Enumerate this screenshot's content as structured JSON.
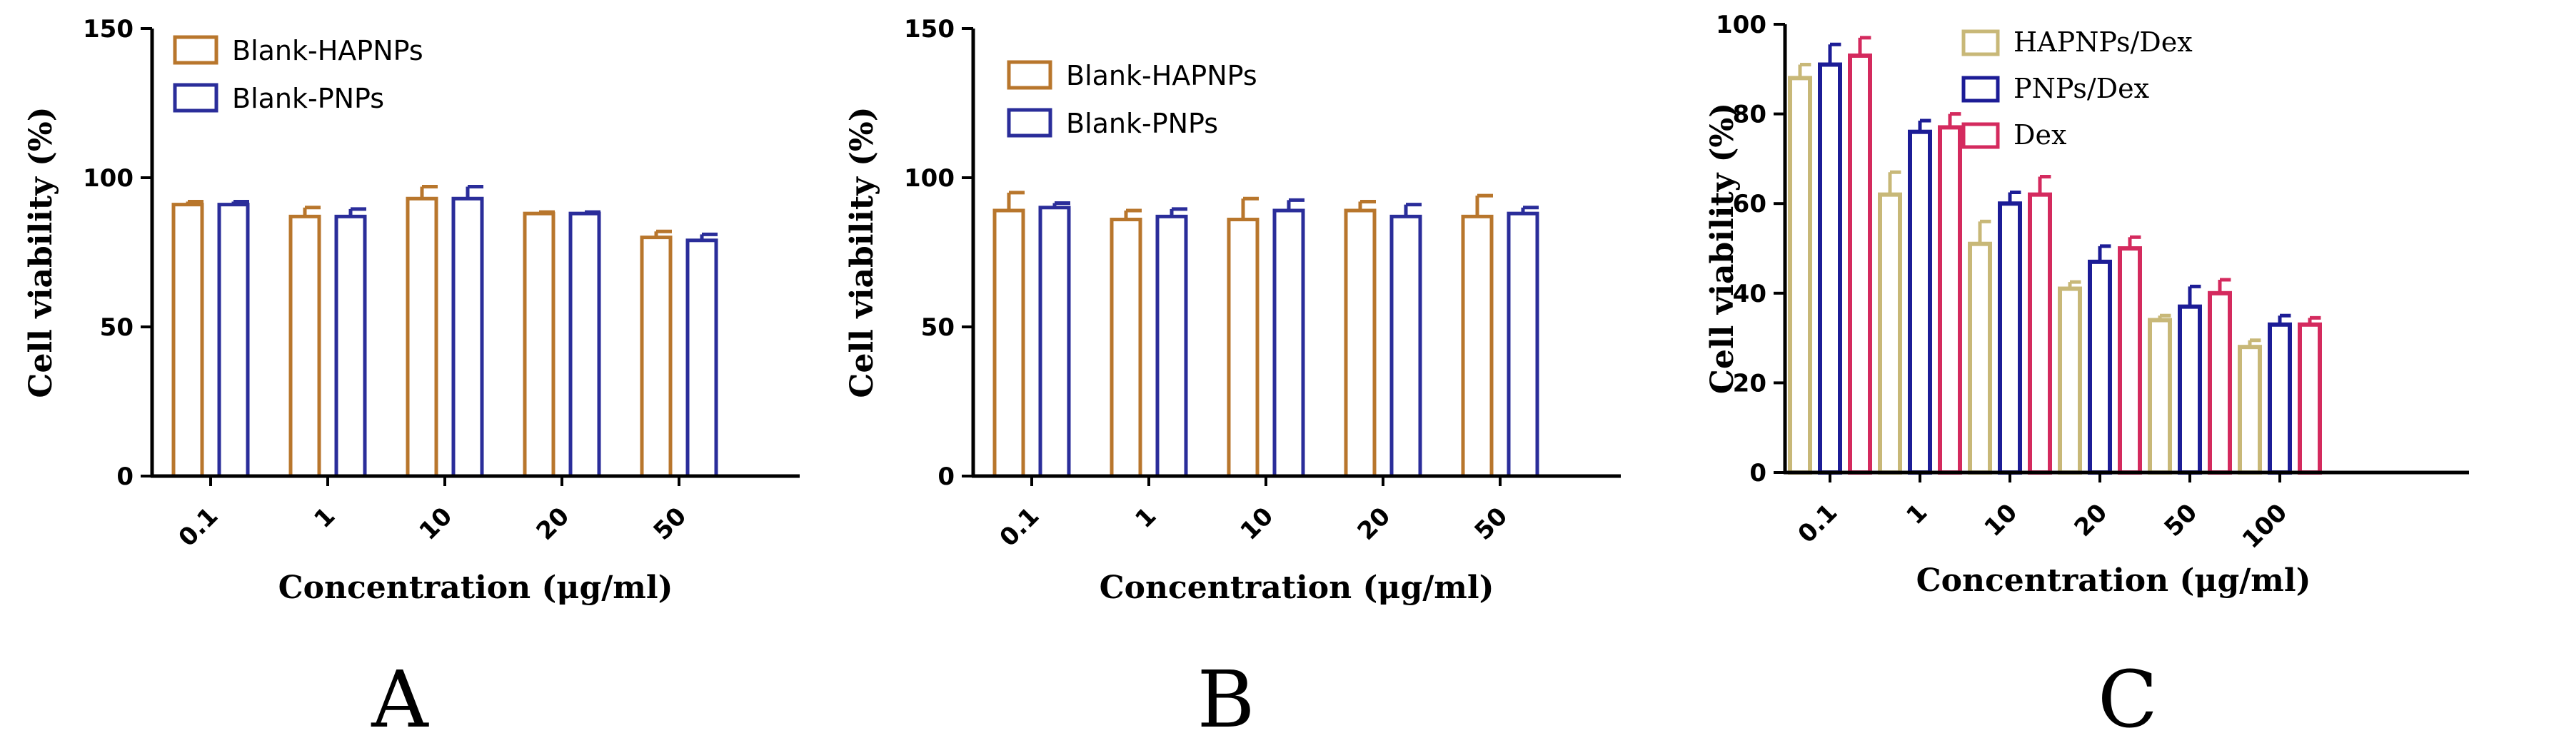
{
  "chart_data": [
    {
      "type": "bar",
      "panel_label": "A",
      "categories": [
        "0.1",
        "1",
        "10",
        "20",
        "50"
      ],
      "series": [
        {
          "name": "Blank-HAPNPs",
          "color": "#b8762c",
          "values": [
            91,
            87,
            93,
            88,
            80
          ],
          "errors": [
            1,
            3,
            4,
            0.5,
            2
          ]
        },
        {
          "name": "Blank-PNPs",
          "color": "#2a2d9a",
          "values": [
            91,
            87,
            93,
            88,
            79
          ],
          "errors": [
            1,
            2.5,
            4,
            0.5,
            2
          ]
        }
      ],
      "xlabel": "Concentration (μg/ml)",
      "ylabel": "Cell viability (%)",
      "ylim": [
        0,
        150
      ],
      "yticks": [
        "0",
        "50",
        "100",
        "150"
      ],
      "legend": "top-left"
    },
    {
      "type": "bar",
      "panel_label": "B",
      "categories": [
        "0.1",
        "1",
        "10",
        "20",
        "50"
      ],
      "series": [
        {
          "name": "Blank-HAPNPs",
          "color": "#b8762c",
          "values": [
            89,
            86,
            86,
            89,
            87
          ],
          "errors": [
            6,
            3,
            7,
            3,
            7
          ]
        },
        {
          "name": "Blank-PNPs",
          "color": "#2a2d9a",
          "values": [
            90,
            87,
            89,
            87,
            88
          ],
          "errors": [
            1.5,
            2.5,
            3.5,
            4,
            2
          ]
        }
      ],
      "xlabel": "Concentration (μg/ml)",
      "ylabel": "Cell viability (%)",
      "ylim": [
        0,
        150
      ],
      "yticks": [
        "0",
        "50",
        "100",
        "150"
      ],
      "legend": "top-left"
    },
    {
      "type": "bar",
      "panel_label": "C",
      "categories": [
        "0.1",
        "1",
        "10",
        "20",
        "50",
        "100"
      ],
      "series": [
        {
          "name": "HAPNPs/Dex",
          "color": "#c8b878",
          "values": [
            88,
            62,
            51,
            41,
            34,
            28
          ],
          "errors": [
            3,
            5,
            5,
            1.5,
            1,
            1.5
          ]
        },
        {
          "name": "PNPs/Dex",
          "color": "#1c1c96",
          "values": [
            91,
            76,
            60,
            47,
            37,
            33
          ],
          "errors": [
            4.5,
            2.5,
            2.5,
            3.5,
            4.5,
            2
          ]
        },
        {
          "name": "Dex",
          "color": "#d42a5e",
          "values": [
            93,
            77,
            62,
            50,
            40,
            33
          ],
          "errors": [
            4,
            3,
            4,
            2.5,
            3,
            1.5
          ]
        }
      ],
      "xlabel": "Concentration (μg/ml)",
      "ylabel": "Cell viability (%)",
      "ylim": [
        0,
        100
      ],
      "yticks": [
        "0",
        "20",
        "40",
        "60",
        "80",
        "100"
      ],
      "legend": "top-right"
    }
  ]
}
